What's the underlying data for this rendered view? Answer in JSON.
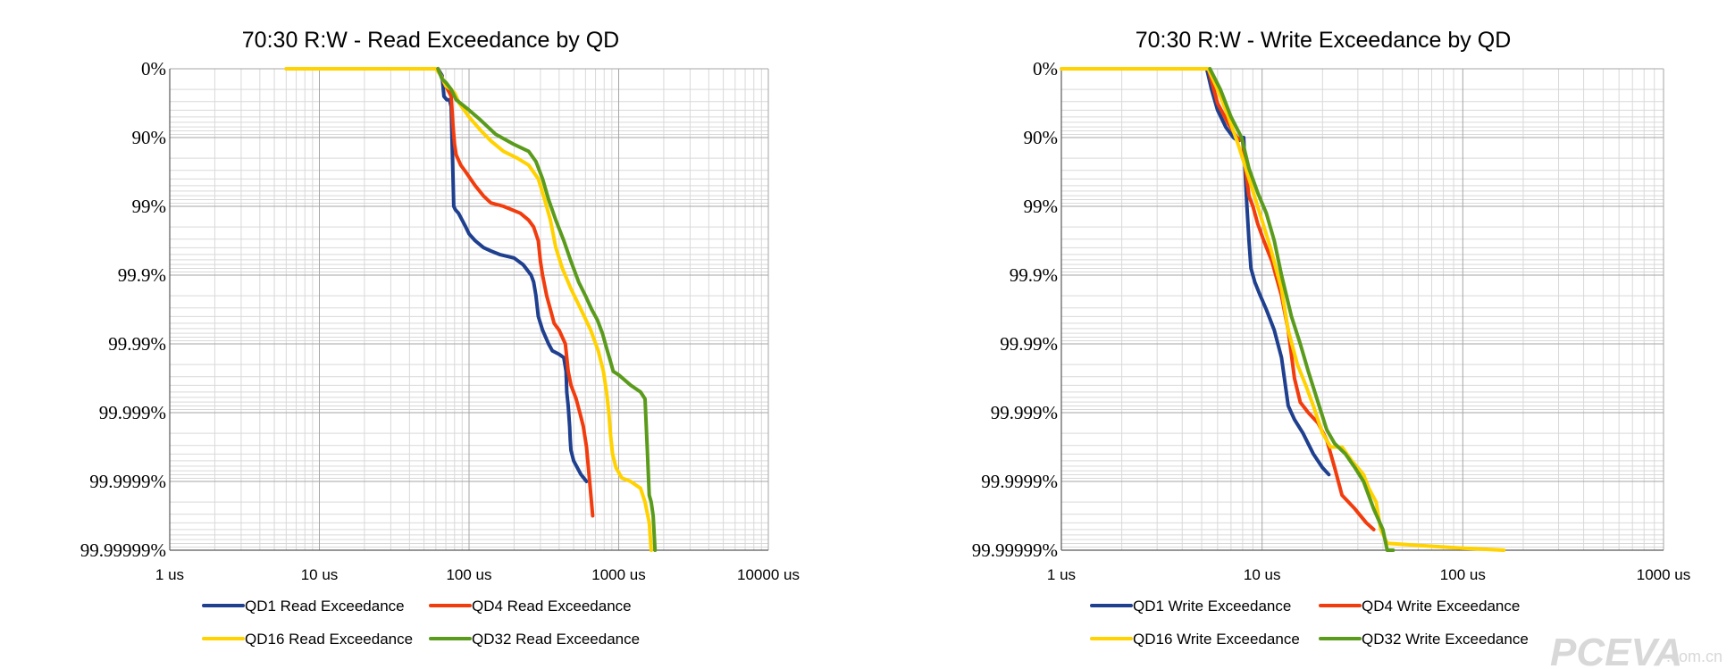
{
  "watermark": {
    "brand": "PCEVA",
    "suffix": ".com.cn"
  },
  "chart_data": [
    {
      "type": "line",
      "title": "70:30 R:W - Read Exceedance by QD",
      "x_scale": "log",
      "x_ticks": [
        "1 us",
        "10 us",
        "100 us",
        "1000 us",
        "10000 us"
      ],
      "xlim": [
        1,
        10000
      ],
      "y_scale": "exceedance (-log10 of 1 - p)",
      "y_ticks": [
        "0%",
        "90%",
        "99%",
        "99.9%",
        "99.99%",
        "99.999%",
        "99.9999%",
        "99.99999%"
      ],
      "ylim": [
        "0%",
        "99.99999%"
      ],
      "grid": true,
      "legend_position": "bottom",
      "series": [
        {
          "name": "QD1 Read Exceedance",
          "color": "#1f3f8f",
          "points": [
            [
              62,
              0
            ],
            [
              66,
              0.1
            ],
            [
              68,
              0.4
            ],
            [
              71,
              0.45
            ],
            [
              74,
              0.45
            ],
            [
              76,
              0.55
            ],
            [
              78,
              1.5
            ],
            [
              79,
              2.0
            ],
            [
              81,
              2.05
            ],
            [
              85,
              2.1
            ],
            [
              90,
              2.2
            ],
            [
              95,
              2.3
            ],
            [
              100,
              2.4
            ],
            [
              110,
              2.5
            ],
            [
              125,
              2.6
            ],
            [
              140,
              2.65
            ],
            [
              160,
              2.7
            ],
            [
              200,
              2.75
            ],
            [
              230,
              2.85
            ],
            [
              260,
              3.0
            ],
            [
              270,
              3.1
            ],
            [
              280,
              3.3
            ],
            [
              290,
              3.6
            ],
            [
              310,
              3.8
            ],
            [
              340,
              4.0
            ],
            [
              360,
              4.1
            ],
            [
              400,
              4.15
            ],
            [
              430,
              4.2
            ],
            [
              445,
              4.4
            ],
            [
              450,
              4.7
            ],
            [
              460,
              4.9
            ],
            [
              470,
              5.2
            ],
            [
              475,
              5.4
            ],
            [
              480,
              5.55
            ],
            [
              500,
              5.7
            ],
            [
              560,
              5.9
            ],
            [
              610,
              6.0
            ]
          ]
        },
        {
          "name": "QD4 Read Exceedance",
          "color": "#f23c0e",
          "points": [
            [
              62,
              0
            ],
            [
              68,
              0.2
            ],
            [
              72,
              0.3
            ],
            [
              76,
              0.4
            ],
            [
              78,
              0.8
            ],
            [
              80,
              1.1
            ],
            [
              82,
              1.25
            ],
            [
              88,
              1.4
            ],
            [
              95,
              1.5
            ],
            [
              110,
              1.7
            ],
            [
              125,
              1.85
            ],
            [
              140,
              1.95
            ],
            [
              170,
              2.0
            ],
            [
              220,
              2.1
            ],
            [
              250,
              2.2
            ],
            [
              270,
              2.3
            ],
            [
              290,
              2.5
            ],
            [
              300,
              2.8
            ],
            [
              310,
              3.0
            ],
            [
              330,
              3.3
            ],
            [
              350,
              3.5
            ],
            [
              370,
              3.7
            ],
            [
              400,
              3.8
            ],
            [
              440,
              4.0
            ],
            [
              460,
              4.4
            ],
            [
              480,
              4.6
            ],
            [
              520,
              4.8
            ],
            [
              550,
              5.0
            ],
            [
              580,
              5.2
            ],
            [
              610,
              5.5
            ],
            [
              640,
              6.0
            ],
            [
              670,
              6.5
            ]
          ]
        },
        {
          "name": "QD16 Read Exceedance",
          "color": "#ffd200",
          "points": [
            [
              6,
              0
            ],
            [
              10,
              0
            ],
            [
              30,
              0
            ],
            [
              60,
              0
            ],
            [
              65,
              0.1
            ],
            [
              70,
              0.25
            ],
            [
              76,
              0.3
            ],
            [
              80,
              0.35
            ],
            [
              86,
              0.5
            ],
            [
              100,
              0.7
            ],
            [
              120,
              0.9
            ],
            [
              140,
              1.05
            ],
            [
              170,
              1.2
            ],
            [
              210,
              1.3
            ],
            [
              250,
              1.4
            ],
            [
              290,
              1.6
            ],
            [
              320,
              1.9
            ],
            [
              350,
              2.2
            ],
            [
              380,
              2.6
            ],
            [
              420,
              2.9
            ],
            [
              480,
              3.2
            ],
            [
              560,
              3.5
            ],
            [
              650,
              3.8
            ],
            [
              730,
              4.1
            ],
            [
              790,
              4.4
            ],
            [
              830,
              4.7
            ],
            [
              860,
              5.0
            ],
            [
              880,
              5.3
            ],
            [
              910,
              5.6
            ],
            [
              960,
              5.8
            ],
            [
              1050,
              5.95
            ],
            [
              1200,
              6.0
            ],
            [
              1400,
              6.1
            ],
            [
              1500,
              6.3
            ],
            [
              1600,
              6.6
            ],
            [
              1650,
              7.0
            ]
          ]
        },
        {
          "name": "QD32 Read Exceedance",
          "color": "#5a9b1c",
          "points": [
            [
              62,
              0
            ],
            [
              66,
              0.15
            ],
            [
              70,
              0.2
            ],
            [
              76,
              0.3
            ],
            [
              82,
              0.45
            ],
            [
              100,
              0.6
            ],
            [
              120,
              0.75
            ],
            [
              150,
              0.95
            ],
            [
              200,
              1.1
            ],
            [
              250,
              1.2
            ],
            [
              280,
              1.35
            ],
            [
              310,
              1.6
            ],
            [
              340,
              1.9
            ],
            [
              380,
              2.2
            ],
            [
              430,
              2.5
            ],
            [
              480,
              2.8
            ],
            [
              540,
              3.1
            ],
            [
              600,
              3.3
            ],
            [
              660,
              3.5
            ],
            [
              720,
              3.65
            ],
            [
              780,
              3.85
            ],
            [
              840,
              4.1
            ],
            [
              880,
              4.25
            ],
            [
              920,
              4.4
            ],
            [
              1000,
              4.45
            ],
            [
              1200,
              4.6
            ],
            [
              1400,
              4.7
            ],
            [
              1500,
              4.8
            ],
            [
              1550,
              5.5
            ],
            [
              1600,
              6.2
            ],
            [
              1650,
              6.3
            ],
            [
              1700,
              6.5
            ],
            [
              1750,
              7.0
            ]
          ]
        }
      ]
    },
    {
      "type": "line",
      "title": "70:30 R:W - Write Exceedance by QD",
      "x_scale": "log",
      "x_ticks": [
        "1 us",
        "10 us",
        "100 us",
        "1000 us"
      ],
      "xlim": [
        1,
        1000
      ],
      "y_scale": "exceedance (-log10 of 1 - p)",
      "y_ticks": [
        "0%",
        "90%",
        "99%",
        "99.9%",
        "99.99%",
        "99.999%",
        "99.9999%",
        "99.99999%"
      ],
      "ylim": [
        "0%",
        "99.99999%"
      ],
      "grid": true,
      "legend_position": "bottom",
      "series": [
        {
          "name": "QD1 Write Exceedance",
          "color": "#1f3f8f",
          "points": [
            [
              5.3,
              0
            ],
            [
              5.6,
              0.3
            ],
            [
              6.0,
              0.6
            ],
            [
              6.6,
              0.85
            ],
            [
              7.2,
              1.0
            ],
            [
              7.6,
              1.05
            ],
            [
              8.1,
              1.0
            ],
            [
              8.2,
              1.4
            ],
            [
              8.4,
              2.0
            ],
            [
              8.6,
              2.5
            ],
            [
              8.8,
              2.9
            ],
            [
              9.2,
              3.1
            ],
            [
              9.8,
              3.3
            ],
            [
              10.5,
              3.5
            ],
            [
              11.5,
              3.8
            ],
            [
              12.5,
              4.2
            ],
            [
              13.5,
              4.9
            ],
            [
              14.5,
              5.1
            ],
            [
              16,
              5.3
            ],
            [
              18,
              5.6
            ],
            [
              20,
              5.8
            ],
            [
              21.5,
              5.9
            ]
          ]
        },
        {
          "name": "QD4 Write Exceedance",
          "color": "#f23c0e",
          "points": [
            [
              5.4,
              0
            ],
            [
              6.0,
              0.5
            ],
            [
              6.8,
              0.8
            ],
            [
              7.5,
              1.0
            ],
            [
              8.0,
              1.05
            ],
            [
              8.3,
              1.5
            ],
            [
              8.6,
              1.85
            ],
            [
              9.0,
              2.0
            ],
            [
              9.5,
              2.25
            ],
            [
              10.2,
              2.5
            ],
            [
              11.2,
              2.8
            ],
            [
              12.5,
              3.3
            ],
            [
              13.5,
              3.8
            ],
            [
              14.5,
              4.5
            ],
            [
              15.5,
              4.85
            ],
            [
              17,
              5.0
            ],
            [
              19,
              5.15
            ],
            [
              21,
              5.4
            ],
            [
              23,
              5.8
            ],
            [
              25,
              6.2
            ],
            [
              29,
              6.4
            ],
            [
              33,
              6.6
            ],
            [
              36,
              6.7
            ]
          ]
        },
        {
          "name": "QD16 Write Exceedance",
          "color": "#ffd200",
          "points": [
            [
              1,
              0
            ],
            [
              2,
              0
            ],
            [
              4,
              0
            ],
            [
              5.4,
              0
            ],
            [
              6.0,
              0.3
            ],
            [
              6.8,
              0.7
            ],
            [
              7.6,
              1.1
            ],
            [
              8.4,
              1.5
            ],
            [
              9.5,
              2.0
            ],
            [
              11,
              2.6
            ],
            [
              12.5,
              3.2
            ],
            [
              13.5,
              3.8
            ],
            [
              15,
              4.3
            ],
            [
              16.5,
              4.6
            ],
            [
              18,
              4.9
            ],
            [
              20,
              5.3
            ],
            [
              22,
              5.5
            ],
            [
              25,
              5.5
            ],
            [
              28,
              5.7
            ],
            [
              32,
              5.9
            ],
            [
              34,
              6.1
            ],
            [
              37,
              6.3
            ],
            [
              39,
              6.7
            ],
            [
              42,
              6.9
            ],
            [
              60,
              6.93
            ],
            [
              100,
              6.97
            ],
            [
              160,
              7.0
            ]
          ]
        },
        {
          "name": "QD32 Write Exceedance",
          "color": "#5a9b1c",
          "points": [
            [
              5.5,
              0
            ],
            [
              6.2,
              0.3
            ],
            [
              7.0,
              0.7
            ],
            [
              7.9,
              1.0
            ],
            [
              8.6,
              1.45
            ],
            [
              9.5,
              1.8
            ],
            [
              10.5,
              2.1
            ],
            [
              11.5,
              2.5
            ],
            [
              12.5,
              3.0
            ],
            [
              14,
              3.6
            ],
            [
              15.5,
              4.0
            ],
            [
              17,
              4.4
            ],
            [
              19,
              4.85
            ],
            [
              21,
              5.25
            ],
            [
              23,
              5.45
            ],
            [
              26,
              5.6
            ],
            [
              29,
              5.8
            ],
            [
              32,
              6.0
            ],
            [
              36,
              6.4
            ],
            [
              40,
              6.7
            ],
            [
              42,
              7.0
            ],
            [
              45,
              7.0
            ]
          ]
        }
      ]
    }
  ]
}
